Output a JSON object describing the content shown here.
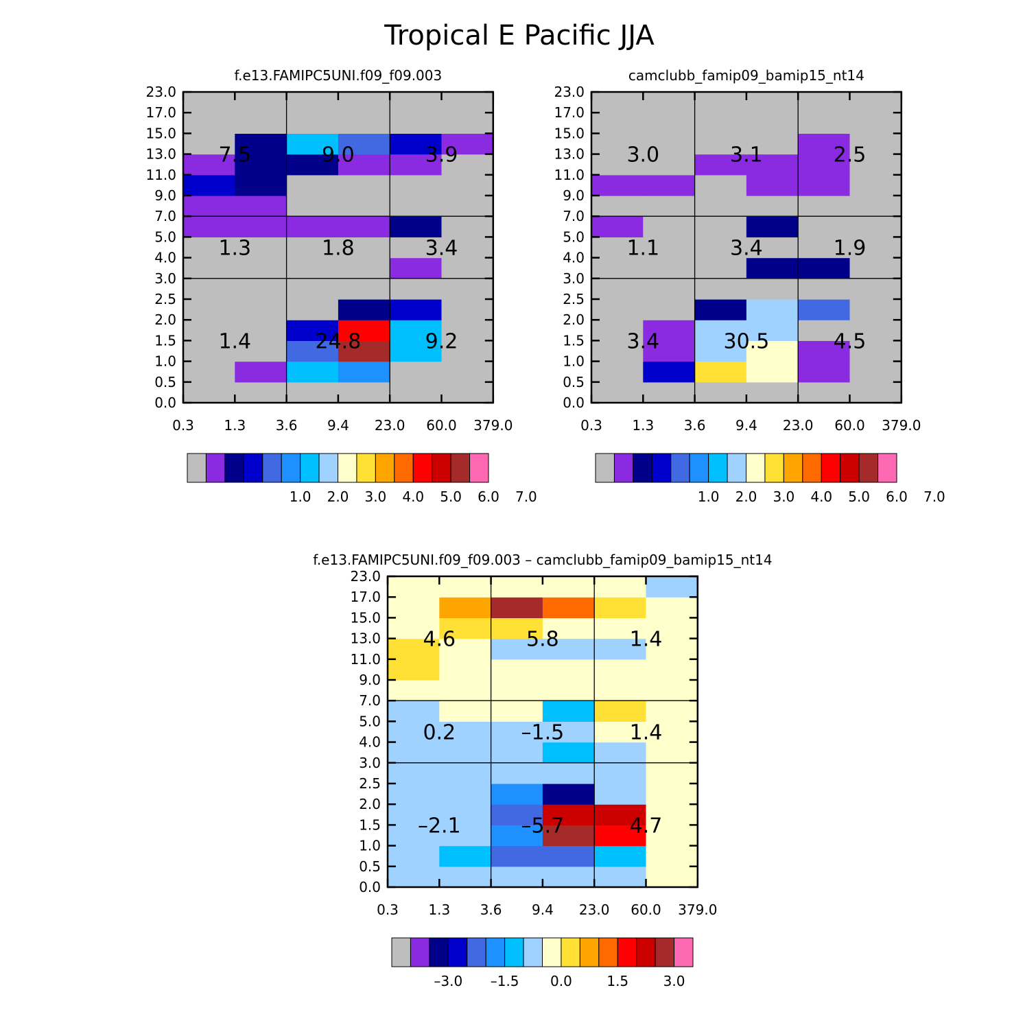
{
  "page_title": "Tropical E Pacific JJA",
  "palette": [
    "#bebebe",
    "#8a2be2",
    "#00008b",
    "#0000cd",
    "#4169e1",
    "#1e90ff",
    "#00bfff",
    "#a0d2ff",
    "#ffffcc",
    "#ffe135",
    "#ffa500",
    "#ff6a00",
    "#ff0000",
    "#cd0000",
    "#a52a2a",
    "#ff69b4"
  ],
  "chart_data": [
    {
      "type": "heatmap",
      "title": "f.e13.FAMIPC5UNI.f09_f09.003",
      "x_tick_labels": [
        "0.3",
        "1.3",
        "3.6",
        "9.4",
        "23.0",
        "60.0",
        "379.0"
      ],
      "y_tick_labels": [
        "0.0",
        "0.5",
        "1.0",
        "1.5",
        "2.0",
        "2.5",
        "3.0",
        "4.0",
        "5.0",
        "7.0",
        "9.0",
        "11.0",
        "13.0",
        "15.0",
        "17.0",
        "23.0"
      ],
      "grid": [
        [
          0,
          0,
          0,
          0,
          0,
          0
        ],
        [
          0,
          1,
          6,
          5,
          0,
          0
        ],
        [
          0,
          0,
          4,
          14,
          6,
          0
        ],
        [
          0,
          0,
          3,
          12,
          6,
          0
        ],
        [
          0,
          0,
          0,
          2,
          3,
          0
        ],
        [
          0,
          0,
          0,
          0,
          0,
          0
        ],
        [
          0,
          0,
          0,
          0,
          1,
          0
        ],
        [
          0,
          0,
          0,
          0,
          0,
          0
        ],
        [
          1,
          1,
          1,
          1,
          2,
          0
        ],
        [
          1,
          1,
          0,
          0,
          0,
          0
        ],
        [
          3,
          2,
          0,
          0,
          0,
          0
        ],
        [
          1,
          2,
          2,
          1,
          1,
          0
        ],
        [
          0,
          2,
          6,
          4,
          3,
          1
        ],
        [
          0,
          0,
          0,
          0,
          0,
          0
        ],
        [
          0,
          0,
          0,
          0,
          0,
          0
        ]
      ],
      "region_values": [
        [
          "1.4",
          "24.8",
          "9.2"
        ],
        [
          "1.3",
          "1.8",
          "3.4"
        ],
        [
          "7.5",
          "9.0",
          "3.9"
        ]
      ],
      "colorbar_labels": [
        "1.0",
        "2.0",
        "3.0",
        "4.0",
        "5.0",
        "6.0",
        "7.0"
      ]
    },
    {
      "type": "heatmap",
      "title": "camclubb_famip09_bamip15_nt14",
      "x_tick_labels": [
        "0.3",
        "1.3",
        "3.6",
        "9.4",
        "23.0",
        "60.0",
        "379.0"
      ],
      "y_tick_labels": [
        "0.0",
        "0.5",
        "1.0",
        "1.5",
        "2.0",
        "2.5",
        "3.0",
        "4.0",
        "5.0",
        "7.0",
        "9.0",
        "11.0",
        "13.0",
        "15.0",
        "17.0",
        "23.0"
      ],
      "grid": [
        [
          0,
          0,
          0,
          0,
          0,
          0
        ],
        [
          0,
          3,
          9,
          8,
          1,
          0
        ],
        [
          0,
          1,
          7,
          8,
          1,
          0
        ],
        [
          0,
          1,
          7,
          7,
          0,
          0
        ],
        [
          0,
          0,
          2,
          7,
          4,
          0
        ],
        [
          0,
          0,
          0,
          0,
          0,
          0
        ],
        [
          0,
          0,
          0,
          2,
          2,
          0
        ],
        [
          0,
          0,
          0,
          0,
          0,
          0
        ],
        [
          1,
          0,
          0,
          2,
          0,
          0
        ],
        [
          0,
          0,
          0,
          0,
          0,
          0
        ],
        [
          1,
          1,
          0,
          1,
          1,
          0
        ],
        [
          0,
          0,
          1,
          1,
          1,
          0
        ],
        [
          0,
          0,
          0,
          0,
          1,
          0
        ],
        [
          0,
          0,
          0,
          0,
          0,
          0
        ],
        [
          0,
          0,
          0,
          0,
          0,
          0
        ]
      ],
      "region_values": [
        [
          "3.4",
          "30.5",
          "4.5"
        ],
        [
          "1.1",
          "3.4",
          "1.9"
        ],
        [
          "3.0",
          "3.1",
          "2.5"
        ]
      ],
      "colorbar_labels": [
        "1.0",
        "2.0",
        "3.0",
        "4.0",
        "5.0",
        "6.0",
        "7.0"
      ]
    },
    {
      "type": "heatmap",
      "title": "f.e13.FAMIPC5UNI.f09_f09.003 – camclubb_famip09_bamip15_nt14",
      "x_tick_labels": [
        "0.3",
        "1.3",
        "3.6",
        "9.4",
        "23.0",
        "60.0",
        "379.0"
      ],
      "y_tick_labels": [
        "0.0",
        "0.5",
        "1.0",
        "1.5",
        "2.0",
        "2.5",
        "3.0",
        "4.0",
        "5.0",
        "7.0",
        "9.0",
        "11.0",
        "13.0",
        "15.0",
        "17.0",
        "23.0"
      ],
      "grid": [
        [
          7,
          7,
          7,
          7,
          7,
          8
        ],
        [
          7,
          6,
          4,
          4,
          6,
          8
        ],
        [
          7,
          7,
          5,
          14,
          12,
          8
        ],
        [
          7,
          7,
          4,
          13,
          13,
          8
        ],
        [
          7,
          7,
          5,
          2,
          7,
          8
        ],
        [
          7,
          7,
          7,
          7,
          7,
          8
        ],
        [
          7,
          7,
          7,
          6,
          7,
          8
        ],
        [
          7,
          7,
          7,
          7,
          8,
          8
        ],
        [
          7,
          8,
          8,
          6,
          9,
          8
        ],
        [
          8,
          8,
          8,
          8,
          8,
          8
        ],
        [
          9,
          8,
          8,
          8,
          8,
          8
        ],
        [
          9,
          8,
          7,
          7,
          7,
          8
        ],
        [
          8,
          9,
          9,
          8,
          8,
          8
        ],
        [
          8,
          10,
          14,
          11,
          9,
          8
        ],
        [
          8,
          8,
          8,
          8,
          8,
          7
        ]
      ],
      "region_values": [
        [
          "–2.1",
          "–5.7",
          "4.7"
        ],
        [
          "0.2",
          "–1.5",
          "1.4"
        ],
        [
          "4.6",
          "5.8",
          "1.4"
        ]
      ],
      "colorbar_labels": [
        "–3.0",
        "–1.5",
        "0.0",
        "1.5",
        "3.0"
      ]
    }
  ]
}
